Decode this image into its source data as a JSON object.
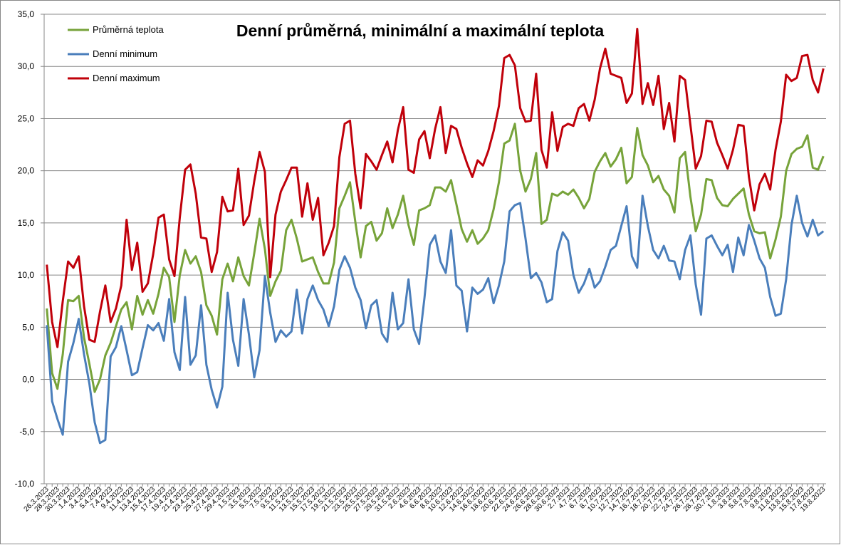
{
  "chart_data": {
    "type": "line",
    "title": "Denní průměrná, minimální a maximální teplota",
    "categories": [
      "26.3.2023",
      null,
      "28.3.2023",
      null,
      "30.3.2023",
      null,
      "1.4.2023",
      null,
      "3.4.2023",
      null,
      "5.4.2023",
      null,
      "7.4.2023",
      null,
      "9.4.2023",
      null,
      "11.4.2023",
      null,
      "13.4.2023",
      null,
      "15.4.2023",
      null,
      "17.4.2023",
      null,
      "19.4.2023",
      null,
      "21.4.2023",
      null,
      "23.4.2023",
      null,
      "25.4.2023",
      null,
      "27.4.2023",
      null,
      "29.4.2023",
      null,
      "1.5.2023",
      null,
      "3.5.2023",
      null,
      "5.5.2023",
      null,
      "7.5.2023",
      null,
      "9.5.2023",
      null,
      "11.5.2023",
      null,
      "13.5.2023",
      null,
      "15.5.2023",
      null,
      "17.5.2023",
      null,
      "19.5.2023",
      null,
      "21.5.2023",
      null,
      "23.5.2023",
      null,
      "25.5.2023",
      null,
      "27.5.2023",
      null,
      "29.5.2023",
      null,
      "31.5.2023",
      null,
      "2.6.2023",
      null,
      "4.6.2023",
      null,
      "6.6.2023",
      null,
      "8.6.2023",
      null,
      "10.6.2023",
      null,
      "12.6.2023",
      null,
      "14.6.2023",
      null,
      "16.6.2023",
      null,
      "18.6.2023",
      null,
      "20.6.2023",
      null,
      "22.6.2023",
      null,
      "24.6.2023",
      null,
      "26.6.2023",
      null,
      "28.6.2023",
      null,
      "30.6.2023",
      null,
      "2.7.2023",
      null,
      "4.7.2023",
      null,
      "6.7.2023",
      null,
      "8.7.2023",
      null,
      "10.7.2023",
      null,
      "12.7.2023",
      null,
      "14.7.2023",
      null,
      "16.7.2023",
      null,
      "18.7.2023",
      null,
      "20.7.2023",
      null,
      "22.7.2023",
      null,
      "24.7.2023",
      null,
      "26.7.2023",
      null,
      "28.7.2023",
      null,
      "30.7.2023",
      null,
      "1.8.2023",
      null,
      "3.8.2023",
      null,
      "5.8.2023",
      null,
      "7.8.2023",
      null,
      "9.8.2023",
      null,
      "11.8.2023",
      null,
      "13.8.2023",
      null,
      "15.8.2023",
      null,
      "17.8.2023",
      null,
      "19.8.2023"
    ],
    "series": [
      {
        "name": "Průměrná teplota",
        "color": "#77a33a",
        "values": [
          6.8,
          0.6,
          -0.9,
          2.4,
          7.6,
          7.5,
          8.0,
          4.0,
          1.5,
          -1.2,
          0.0,
          2.3,
          3.5,
          5.1,
          6.7,
          7.4,
          4.8,
          8.0,
          6.2,
          7.6,
          6.3,
          8.2,
          10.7,
          9.8,
          5.5,
          10.0,
          12.4,
          11.1,
          11.8,
          10.3,
          7.1,
          6.1,
          4.3,
          9.6,
          11.1,
          9.4,
          11.7,
          9.9,
          9.0,
          12.1,
          15.4,
          12.5,
          8.0,
          9.4,
          10.4,
          14.3,
          15.3,
          13.5,
          11.3,
          11.5,
          11.7,
          10.3,
          9.2,
          9.2,
          11.2,
          16.4,
          17.6,
          18.9,
          15.1,
          11.7,
          14.7,
          15.1,
          13.3,
          14.0,
          16.4,
          14.5,
          15.8,
          17.6,
          14.8,
          12.9,
          16.2,
          16.4,
          16.7,
          18.4,
          18.4,
          18.0,
          19.1,
          16.8,
          14.4,
          13.2,
          14.3,
          13.0,
          13.5,
          14.3,
          16.3,
          18.9,
          22.6,
          22.9,
          24.5,
          20.0,
          18.0,
          19.2,
          21.7,
          14.9,
          15.3,
          17.8,
          17.6,
          18.0,
          17.7,
          18.2,
          17.4,
          16.4,
          17.3,
          19.9,
          20.9,
          21.7,
          20.4,
          21.1,
          22.2,
          18.8,
          19.4,
          24.1,
          21.5,
          20.5,
          18.9,
          19.5,
          18.2,
          17.6,
          16.0,
          21.2,
          21.8,
          17.5,
          14.2,
          15.8,
          19.2,
          19.1,
          17.4,
          16.7,
          16.6,
          17.3,
          17.8,
          18.3,
          15.8,
          14.2,
          14.0,
          14.1,
          11.6,
          13.4,
          15.6,
          20.0,
          21.6,
          22.1,
          22.3,
          23.4,
          20.3,
          20.1,
          21.4
        ]
      },
      {
        "name": "Denní minimum",
        "color": "#4a7ebb",
        "values": [
          5.2,
          -2.1,
          -3.8,
          -5.3,
          1.7,
          3.5,
          5.8,
          2.4,
          -0.4,
          -4.1,
          -6.1,
          -5.8,
          2.2,
          3.1,
          5.1,
          2.8,
          0.4,
          0.7,
          3.0,
          5.2,
          4.7,
          5.4,
          3.7,
          7.7,
          2.6,
          0.9,
          7.9,
          1.4,
          2.3,
          7.1,
          1.4,
          -1.0,
          -2.7,
          -0.7,
          8.3,
          3.8,
          1.3,
          7.7,
          4.3,
          0.2,
          2.8,
          9.9,
          6.4,
          3.6,
          4.7,
          4.1,
          4.6,
          8.6,
          4.4,
          7.7,
          9.0,
          7.6,
          6.7,
          5.1,
          7.0,
          10.5,
          11.8,
          10.7,
          8.8,
          7.6,
          4.9,
          7.1,
          7.6,
          4.4,
          3.6,
          8.3,
          4.8,
          5.4,
          9.6,
          4.8,
          3.4,
          7.8,
          12.9,
          13.8,
          11.3,
          10.2,
          14.3,
          9.0,
          8.5,
          4.6,
          8.8,
          8.2,
          8.6,
          9.7,
          7.3,
          9.0,
          11.3,
          16.1,
          16.7,
          16.9,
          13.5,
          9.7,
          10.2,
          9.3,
          7.4,
          7.7,
          12.3,
          14.1,
          13.3,
          10.0,
          8.3,
          9.2,
          10.6,
          8.8,
          9.4,
          10.8,
          12.4,
          12.8,
          14.7,
          16.6,
          11.8,
          10.7,
          17.6,
          14.7,
          12.4,
          11.6,
          12.8,
          11.4,
          11.3,
          9.6,
          12.4,
          13.8,
          9.1,
          6.2,
          13.5,
          13.8,
          12.8,
          11.9,
          12.9,
          10.3,
          13.6,
          11.9,
          14.8,
          13.3,
          11.6,
          10.7,
          7.9,
          6.1,
          6.3,
          9.6,
          14.8,
          17.6,
          15.0,
          13.7,
          15.3,
          13.8,
          14.2
        ]
      },
      {
        "name": "Denní maximum",
        "color": "#c0000a",
        "values": [
          11.0,
          5.5,
          3.1,
          7.5,
          11.3,
          10.7,
          11.8,
          7.0,
          3.8,
          3.6,
          6.5,
          9.0,
          5.5,
          6.8,
          9.0,
          15.3,
          10.5,
          13.1,
          8.4,
          9.2,
          12.0,
          15.5,
          15.8,
          11.5,
          9.9,
          15.5,
          20.1,
          20.6,
          17.8,
          13.6,
          13.5,
          10.3,
          12.2,
          17.5,
          16.1,
          16.2,
          20.2,
          14.8,
          15.7,
          19.0,
          21.8,
          19.9,
          9.8,
          15.8,
          18.0,
          19.1,
          20.3,
          20.3,
          15.6,
          18.8,
          15.3,
          17.4,
          11.9,
          13.1,
          14.7,
          21.3,
          24.5,
          24.8,
          19.7,
          16.4,
          21.6,
          20.9,
          20.1,
          21.5,
          22.8,
          20.8,
          23.9,
          26.1,
          20.1,
          19.8,
          23.0,
          23.8,
          21.2,
          24.0,
          26.1,
          21.7,
          24.3,
          24.0,
          22.2,
          20.7,
          19.4,
          21.0,
          20.5,
          21.9,
          23.8,
          26.2,
          30.8,
          31.1,
          30.1,
          26.0,
          24.7,
          24.8,
          29.3,
          22.0,
          20.3,
          25.6,
          21.9,
          24.2,
          24.5,
          24.3,
          26.0,
          26.4,
          24.8,
          26.8,
          29.8,
          31.7,
          29.3,
          29.1,
          28.9,
          26.5,
          27.4,
          33.6,
          26.4,
          28.4,
          26.3,
          29.1,
          24.0,
          26.5,
          22.8,
          29.1,
          28.7,
          24.4,
          20.2,
          21.4,
          24.8,
          24.7,
          22.7,
          21.5,
          20.2,
          22.0,
          24.4,
          24.3,
          19.4,
          16.2,
          18.7,
          19.7,
          18.2,
          22.0,
          24.7,
          29.2,
          28.6,
          28.9,
          31.0,
          31.1,
          28.7,
          27.5,
          29.8
        ]
      }
    ],
    "ylim": [
      -10,
      35
    ],
    "yticks": [
      {
        "value": -10,
        "label": "-10,0"
      },
      {
        "value": -5,
        "label": "-5,0"
      },
      {
        "value": 0,
        "label": "0,0"
      },
      {
        "value": 5,
        "label": "5,0"
      },
      {
        "value": 10,
        "label": "10,0"
      },
      {
        "value": 15,
        "label": "15,0"
      },
      {
        "value": 20,
        "label": "20,0"
      },
      {
        "value": 25,
        "label": "25,0"
      },
      {
        "value": 30,
        "label": "30,0"
      },
      {
        "value": 35,
        "label": "35,0"
      }
    ],
    "grid": true,
    "legend": "top-left"
  }
}
